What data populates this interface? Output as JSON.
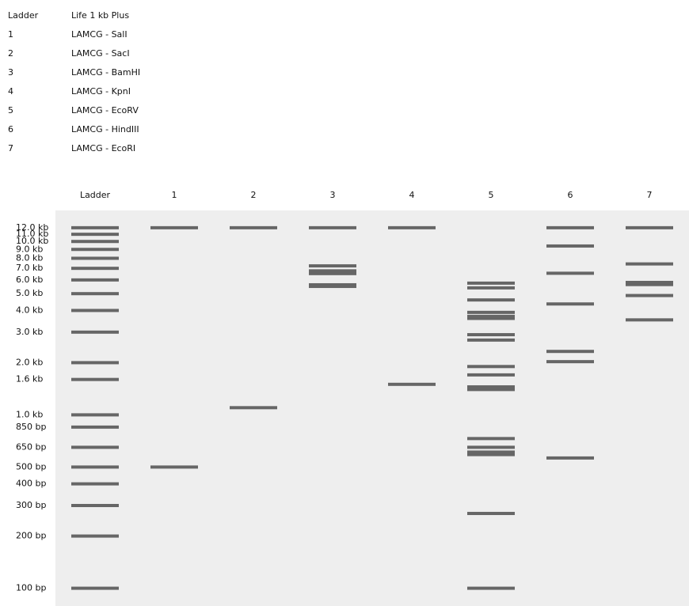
{
  "chart_data": {
    "type": "gel",
    "log_scale": true,
    "color": "#666666",
    "background": "#eeeeee",
    "ylim": [
      79,
      15100
    ],
    "yticks": [
      {
        "value": 12000,
        "label": "12.0 kb"
      },
      {
        "value": 11000,
        "label": "11.0 kb"
      },
      {
        "value": 10000,
        "label": "10.0 kb"
      },
      {
        "value": 9000,
        "label": "9.0 kb"
      },
      {
        "value": 8000,
        "label": "8.0 kb"
      },
      {
        "value": 7000,
        "label": "7.0 kb"
      },
      {
        "value": 6000,
        "label": "6.0 kb"
      },
      {
        "value": 5000,
        "label": "5.0 kb"
      },
      {
        "value": 4000,
        "label": "4.0 kb"
      },
      {
        "value": 3000,
        "label": "3.0 kb"
      },
      {
        "value": 2000,
        "label": "2.0 kb"
      },
      {
        "value": 1600,
        "label": "1.6 kb"
      },
      {
        "value": 1000,
        "label": "1.0 kb"
      },
      {
        "value": 850,
        "label": "850 bp"
      },
      {
        "value": 650,
        "label": "650 bp"
      },
      {
        "value": 500,
        "label": "500 bp"
      },
      {
        "value": 400,
        "label": "400 bp"
      },
      {
        "value": 300,
        "label": "300 bp"
      },
      {
        "value": 200,
        "label": "200 bp"
      },
      {
        "value": 100,
        "label": "100 bp"
      }
    ],
    "series": [
      {
        "name": "Ladder",
        "description": "Life 1 kb Plus",
        "values": [
          12000,
          11000,
          10000,
          9000,
          8000,
          7000,
          6000,
          5000,
          4000,
          3000,
          2000,
          1600,
          1000,
          850,
          650,
          500,
          400,
          300,
          200,
          100
        ]
      },
      {
        "name": "1",
        "description": "LAMCG - SalI",
        "values": [
          12000,
          500
        ]
      },
      {
        "name": "2",
        "description": "LAMCG - SacI",
        "values": [
          12000,
          1100
        ]
      },
      {
        "name": "3",
        "description": "LAMCG - BamHI",
        "values": [
          12000,
          7233,
          6770,
          6527,
          5626,
          5505
        ]
      },
      {
        "name": "4",
        "description": "LAMCG - KpnI",
        "values": [
          12000,
          1500
        ]
      },
      {
        "name": "5",
        "description": "LAMCG - EcoRV",
        "values": [
          5750,
          5400,
          4600,
          3900,
          3700,
          3600,
          2900,
          2700,
          1900,
          1700,
          1450,
          1400,
          730,
          650,
          610,
          590,
          270,
          100
        ]
      },
      {
        "name": "6",
        "description": "LAMCG - HindIII",
        "values": [
          12000,
          9416,
          6557,
          4361,
          2322,
          2027,
          564
        ]
      },
      {
        "name": "7",
        "description": "LAMCG - EcoRI",
        "values": [
          12000,
          7421,
          5804,
          5643,
          4878,
          3530
        ]
      }
    ]
  }
}
